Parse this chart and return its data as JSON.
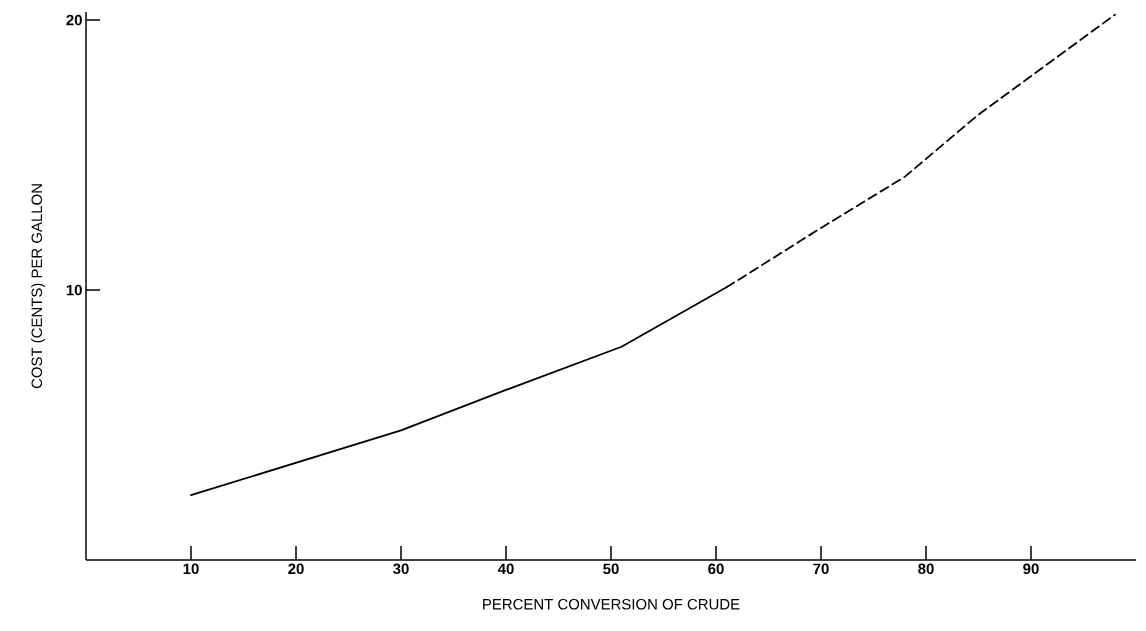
{
  "chart_data": {
    "type": "line",
    "xlabel": "PERCENT CONVERSION OF CRUDE",
    "ylabel": "COST (CENTS) PER GALLON",
    "series": [
      {
        "color": "#000000",
        "line_style": "solid",
        "x": [
          10,
          20,
          30,
          40,
          51,
          61
        ],
        "values": [
          2.4,
          3.6,
          4.8,
          6.3,
          7.9,
          10.1
        ]
      },
      {
        "color": "#000000",
        "line_style": "dashed",
        "x": [
          61,
          70,
          78,
          85,
          98
        ],
        "values": [
          10.1,
          12.3,
          14.2,
          16.5,
          20.2
        ]
      }
    ],
    "xlim": [
      0,
      100
    ],
    "ylim": [
      0,
      20.3
    ],
    "xticks": [
      10,
      20,
      30,
      40,
      50,
      60,
      70,
      80,
      90
    ],
    "yticks": [
      10,
      20
    ],
    "grid": false,
    "marker": "none"
  }
}
